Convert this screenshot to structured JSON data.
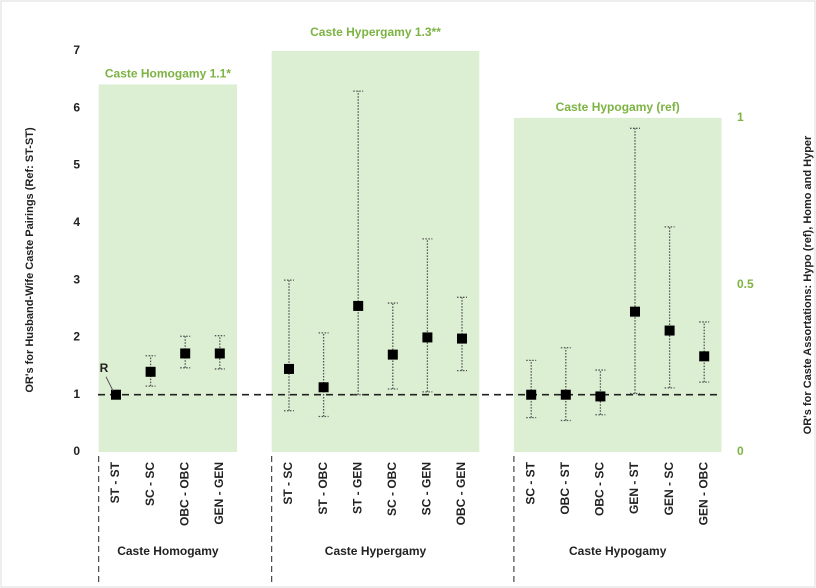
{
  "chart_data": {
    "type": "errorbar",
    "y_label": "OR's for Husband-Wife Caste Pairings (Ref: ST-ST)",
    "y2_label": "OR's for Caste Assortations: Hypo (ref), Homo and Hyper",
    "ylim": [
      0,
      7
    ],
    "yticks": [
      0,
      1,
      2,
      3,
      4,
      5,
      6,
      7
    ],
    "y2lim": [
      0,
      1.2
    ],
    "y2ticks": [
      0,
      0.5,
      1
    ],
    "reference_line": 1,
    "annotation": "R",
    "point_color": "#000000",
    "band_color": "#dcefd3",
    "band_text_color": "#7cb342",
    "groups": [
      {
        "name": "Caste Homogamy",
        "band_label": "Caste Homogamy 1.1*",
        "band_value": 1.1,
        "categories": [
          "ST - ST",
          "SC - SC",
          "OBC - OBC",
          "GEN - GEN"
        ],
        "values": [
          1,
          1.4,
          1.72,
          1.72
        ],
        "lower": [
          null,
          1.15,
          1.47,
          1.45
        ],
        "upper": [
          null,
          1.68,
          2.02,
          2.03
        ]
      },
      {
        "name": "Caste Hypergamy",
        "band_label": "Caste Hypergamy 1.3**",
        "band_value": 1.3,
        "categories": [
          "ST - SC",
          "ST - OBC",
          "ST - GEN",
          "SC - OBC",
          "SC - GEN",
          "OBC - GEN"
        ],
        "values": [
          1.45,
          1.13,
          2.55,
          1.7,
          2.0,
          1.98
        ],
        "lower": [
          0.72,
          0.62,
          1.0,
          1.1,
          1.05,
          1.42
        ],
        "upper": [
          3.0,
          2.08,
          6.3,
          2.6,
          3.72,
          2.7
        ]
      },
      {
        "name": "Caste Hypogamy",
        "band_label": "Caste Hypogamy (ref)",
        "band_value": 1,
        "categories": [
          "SC - ST",
          "OBC - ST",
          "OBC - SC",
          "GEN - ST",
          "GEN - SC",
          "GEN - OBC"
        ],
        "values": [
          1.0,
          1.0,
          0.97,
          2.45,
          2.12,
          1.67
        ],
        "lower": [
          0.6,
          0.55,
          0.65,
          1.02,
          1.12,
          1.22
        ],
        "upper": [
          1.6,
          1.82,
          1.43,
          5.65,
          3.93,
          2.27
        ]
      }
    ]
  }
}
